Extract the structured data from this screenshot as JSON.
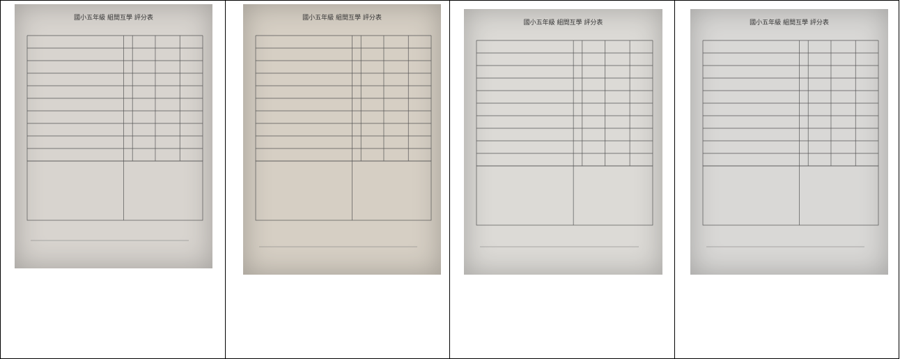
{
  "photos": [
    {
      "title": "國小五年級 組間互學 評分表"
    },
    {
      "title": "國小五年級 組間互學 評分表"
    },
    {
      "title": "國小五年級 組間互學 評分表"
    },
    {
      "title": "國小五年級 組間互學 評分表"
    }
  ]
}
